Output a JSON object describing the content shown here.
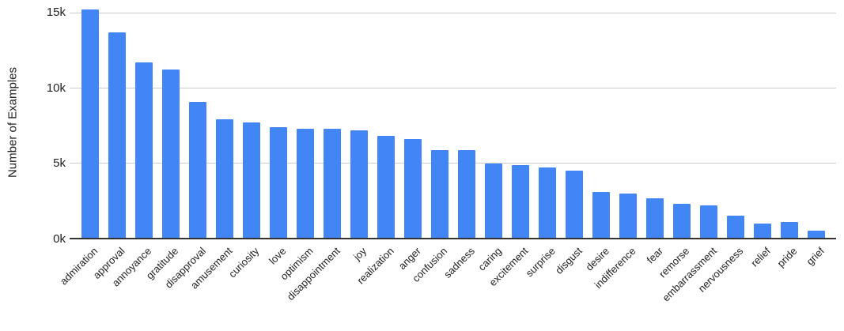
{
  "colors": {
    "bar": "#4285f4",
    "gridline": "#cccccc",
    "axis_line": "#333333",
    "text": "#212121",
    "background": "#ffffff"
  },
  "chart_data": {
    "type": "bar",
    "title": "",
    "xlabel": "",
    "ylabel": "Number of Examples",
    "unit": "thousands",
    "grid": true,
    "legend": "none",
    "ylim": [
      0,
      15.8
    ],
    "categories": [
      "admiration",
      "approval",
      "annoyance",
      "gratitude",
      "disapproval",
      "amusement",
      "curiosity",
      "love",
      "optimism",
      "disappointment",
      "joy",
      "realization",
      "anger",
      "confusion",
      "sadness",
      "caring",
      "excitement",
      "surprise",
      "disgust",
      "desire",
      "indifference",
      "fear",
      "remorse",
      "embarrassment",
      "nervousness",
      "relief",
      "pride",
      "grief"
    ],
    "values": [
      15.2,
      13.7,
      11.7,
      11.2,
      9.1,
      7.9,
      7.7,
      7.4,
      7.3,
      7.3,
      7.2,
      6.8,
      6.6,
      5.9,
      5.9,
      5.0,
      4.9,
      4.7,
      4.5,
      3.1,
      3.0,
      2.7,
      2.3,
      2.2,
      1.5,
      1.0,
      1.1,
      0.5
    ],
    "y_ticks": [
      {
        "value": 0,
        "label": "0k"
      },
      {
        "value": 5,
        "label": "5k"
      },
      {
        "value": 10,
        "label": "10k"
      },
      {
        "value": 15,
        "label": "15k"
      }
    ]
  }
}
